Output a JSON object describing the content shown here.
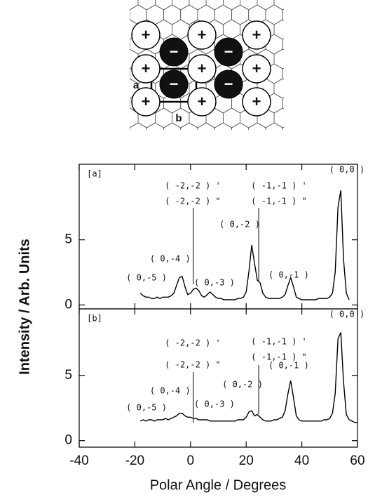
{
  "diagram": {
    "plus": "+",
    "minus": "−",
    "cell_labels": [
      "a",
      "b"
    ]
  },
  "chart_data": [
    {
      "type": "line",
      "panel_label": "[a]",
      "ylabel": "Intensity / Arb. Units",
      "xlim": [
        -40,
        60
      ],
      "xticks": [
        -40,
        -20,
        0,
        20,
        40,
        60
      ],
      "ylim": [
        -0.3,
        10.8
      ],
      "yticks": [
        0,
        5
      ],
      "annotations": [
        "( 0,-5 )",
        "( 0,-4 )",
        "( -2,-2 ) '",
        "( -2,-2 ) \"",
        "( 0,-3 )",
        "( 0,-2 )",
        "( -1,-1 ) '",
        "( -1,-1 ) \"",
        "( 0,-1 )",
        "( 0,0 )"
      ],
      "series": [
        {
          "color": "#000000",
          "x": [
            -18,
            -17,
            -16,
            -15,
            -14,
            -13,
            -12,
            -11,
            -10,
            -9,
            -8,
            -7,
            -6,
            -5,
            -4,
            -3,
            -2,
            -1,
            0,
            1,
            2,
            3,
            4,
            5,
            6,
            7,
            8,
            9,
            10,
            11,
            12,
            13,
            14,
            15,
            16,
            17,
            18,
            19,
            20,
            21,
            22,
            23,
            24,
            25,
            26,
            27,
            28,
            29,
            30,
            31,
            32,
            33,
            34,
            35,
            36,
            37,
            38,
            39,
            40,
            41,
            42,
            43,
            44,
            45,
            46,
            47,
            48,
            49,
            50,
            51,
            52,
            53,
            54,
            55,
            56,
            57
          ],
          "values": [
            0.9,
            0.7,
            0.6,
            0.6,
            0.5,
            0.5,
            0.6,
            0.5,
            0.6,
            0.6,
            0.6,
            0.7,
            0.9,
            1.5,
            2.1,
            2.2,
            1.4,
            0.8,
            0.9,
            1.2,
            1.3,
            1.1,
            0.7,
            0.6,
            0.8,
            1.0,
            0.8,
            0.6,
            0.5,
            0.5,
            0.4,
            0.4,
            0.4,
            0.4,
            0.4,
            0.5,
            0.5,
            0.6,
            1.0,
            2.6,
            4.6,
            3.2,
            1.9,
            1.7,
            0.9,
            0.6,
            0.5,
            0.5,
            0.5,
            0.5,
            0.5,
            0.6,
            0.8,
            1.5,
            2.1,
            1.4,
            0.6,
            0.5,
            0.4,
            0.4,
            0.4,
            0.4,
            0.4,
            0.4,
            0.5,
            0.5,
            0.5,
            0.5,
            0.6,
            0.9,
            2.5,
            7.5,
            8.8,
            3.5,
            0.9,
            0.4
          ]
        }
      ]
    },
    {
      "type": "line",
      "panel_label": "[b]",
      "xlabel": "Polar Angle / Degrees",
      "xlim": [
        -40,
        60
      ],
      "xticks": [
        -40,
        -20,
        0,
        20,
        40,
        60
      ],
      "ylim": [
        -0.5,
        10.1
      ],
      "yticks": [
        0,
        5
      ],
      "annotations": [
        "( 0,-5 )",
        "( 0,-4 )",
        "( -2,-2 ) '",
        "( -2,-2 ) \"",
        "( 0,-3 )",
        "( 0,-2 )",
        "( -1,-1 ) '",
        "( -1,-1 ) \"",
        "( 0,-1 )",
        "( 0,0 )"
      ],
      "series": [
        {
          "color": "#000000",
          "x": [
            -18,
            -17,
            -16,
            -15,
            -14,
            -13,
            -12,
            -11,
            -10,
            -9,
            -8,
            -7,
            -6,
            -5,
            -4,
            -3,
            -2,
            -1,
            0,
            1,
            2,
            3,
            4,
            5,
            6,
            7,
            8,
            9,
            10,
            11,
            12,
            13,
            14,
            15,
            16,
            17,
            18,
            19,
            20,
            21,
            22,
            23,
            24,
            25,
            26,
            27,
            28,
            29,
            30,
            31,
            32,
            33,
            34,
            35,
            36,
            37,
            38,
            39,
            40,
            41,
            42,
            43,
            44,
            45,
            46,
            47,
            48,
            49,
            50,
            51,
            52,
            53,
            54,
            55,
            56,
            57,
            58,
            59,
            60
          ],
          "values": [
            1.5,
            1.6,
            1.5,
            1.6,
            1.6,
            1.5,
            1.6,
            1.6,
            1.6,
            1.7,
            1.6,
            1.7,
            1.8,
            1.9,
            2.1,
            2.1,
            1.9,
            1.8,
            1.8,
            1.7,
            1.7,
            1.6,
            1.6,
            1.6,
            1.6,
            1.5,
            1.5,
            1.5,
            1.5,
            1.5,
            1.5,
            1.5,
            1.5,
            1.5,
            1.5,
            1.6,
            1.6,
            1.6,
            1.8,
            2.2,
            2.3,
            1.9,
            2.0,
            1.8,
            1.6,
            1.5,
            1.5,
            1.5,
            1.6,
            1.6,
            1.7,
            1.8,
            2.3,
            3.6,
            4.6,
            3.3,
            1.9,
            1.6,
            1.5,
            1.5,
            1.5,
            1.5,
            1.5,
            1.5,
            1.5,
            1.5,
            1.6,
            1.6,
            1.7,
            2.1,
            3.6,
            7.8,
            8.3,
            4.5,
            2.0,
            1.6,
            1.5,
            1.4,
            1.4
          ]
        }
      ]
    }
  ]
}
